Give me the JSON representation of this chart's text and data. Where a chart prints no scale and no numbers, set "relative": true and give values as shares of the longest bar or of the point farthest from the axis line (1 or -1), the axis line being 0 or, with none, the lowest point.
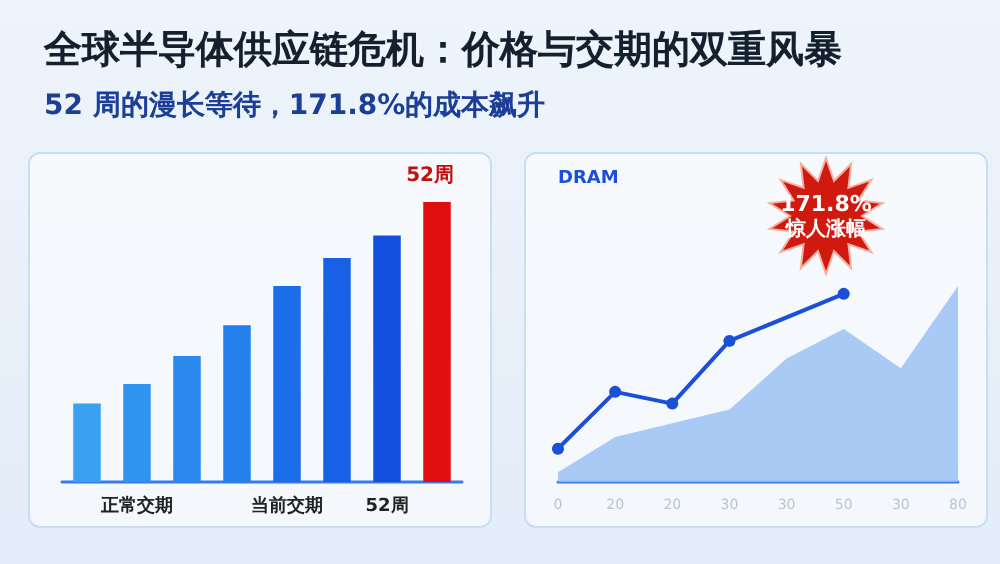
{
  "chart_data": [
    {
      "type": "bar",
      "title": "全球半导体供应链危机：价格与交期的双重风暴",
      "subtitle": "52 周的漫长等待，171.8%的成本飙升",
      "annotations": [
        "52周"
      ],
      "categories": [
        null,
        "正常交期",
        null,
        null,
        "当前交期",
        null,
        "52周",
        null
      ],
      "values": [
        0.28,
        0.35,
        0.45,
        0.56,
        0.7,
        0.8,
        0.88,
        1
      ],
      "colors": [
        "#3aa0f0",
        "#2f94f0",
        "#2a88ee",
        "#2480ec",
        "#1c6ee8",
        "#1860e6",
        "#1450e0",
        "#e01010"
      ],
      "relative": true
    },
    {
      "type": "line",
      "ylabel": "DRAM",
      "annotations": [
        "171.8%",
        "惊人涨幅"
      ],
      "categories": [
        "0",
        "20",
        "20",
        "30",
        "30",
        "50",
        "30",
        "80"
      ],
      "relative": true,
      "series": [
        {
          "type": "area",
          "color": "#9cc2f5",
          "values": [
            0.05,
            0.23,
            0.3,
            0.37,
            0.63,
            0.78,
            0.58,
            1
          ]
        },
        {
          "type": "line",
          "color": "#1a4fd6",
          "marker": "circle",
          "values": [
            0.17,
            0.46,
            0.4,
            0.72,
            null,
            0.96,
            null,
            null
          ]
        }
      ]
    }
  ]
}
